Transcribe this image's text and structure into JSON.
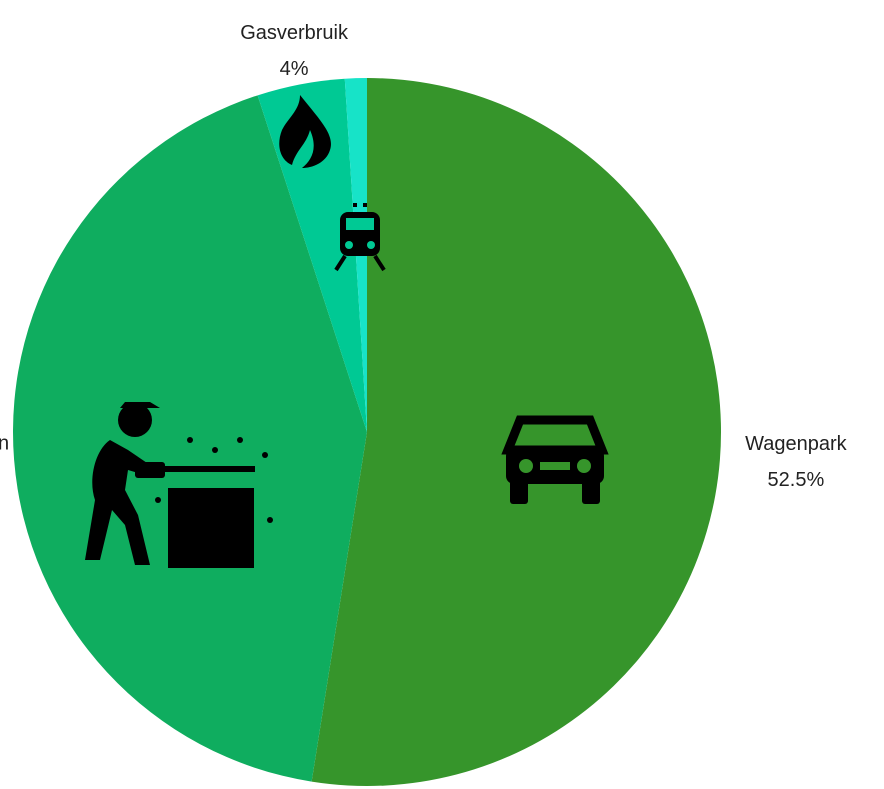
{
  "chart_data": {
    "type": "pie",
    "categories": [
      "Wagenpark",
      "n",
      "Gasverbruik",
      null
    ],
    "values": [
      52.5,
      42.5,
      4,
      1
    ],
    "value_labels": [
      "52.5%",
      null,
      "4%",
      null
    ],
    "colors": [
      "#36952b",
      "#0fad5f",
      "#00c994",
      "#17e3c8"
    ]
  }
}
